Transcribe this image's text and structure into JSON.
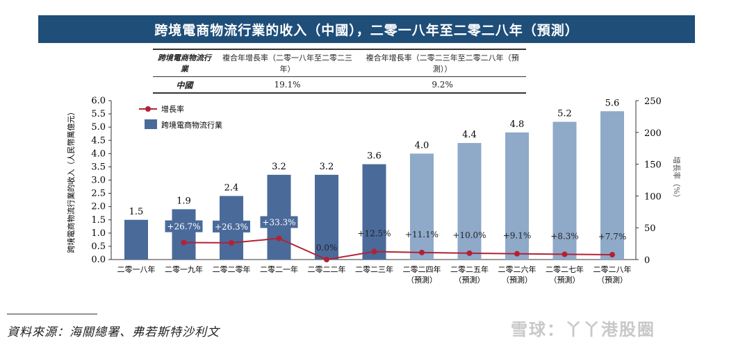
{
  "title": "跨境電商物流行業的收入（中國），二零一八年至二零二八年（預測）",
  "table": {
    "headers": [
      "跨境電商物流行業",
      "複合年增長率（二零一八年至二零二三年）",
      "複合年增長率（二零二三年至二零二八年（預測））"
    ],
    "rows": [
      [
        "中國",
        "19.1%",
        "9.2%"
      ]
    ]
  },
  "chart_data": {
    "type": "bar",
    "categories": [
      [
        "二零一八年",
        ""
      ],
      [
        "二零一九年",
        ""
      ],
      [
        "二零二零年",
        ""
      ],
      [
        "二零二一年",
        ""
      ],
      [
        "二零二二年",
        ""
      ],
      [
        "二零二三年",
        ""
      ],
      [
        "二零二四年",
        "（預測）"
      ],
      [
        "二零二五年",
        "（預測）"
      ],
      [
        "二零二六年",
        "（預測）"
      ],
      [
        "二零二七年",
        "（預測）"
      ],
      [
        "二零二八年",
        "（預測）"
      ]
    ],
    "series": [
      {
        "name": "跨境電商物流行業",
        "type": "bar",
        "axis": "left",
        "values": [
          1.5,
          1.9,
          2.4,
          3.2,
          3.2,
          3.6,
          4.0,
          4.4,
          4.8,
          5.2,
          5.6
        ],
        "value_labels": [
          "1.5",
          "1.9",
          "2.4",
          "3.2",
          "3.2",
          "3.6",
          "4.0",
          "4.4",
          "4.8",
          "5.2",
          "5.6"
        ],
        "color": "#4a6a9a",
        "forecast_color": "#8fa9c9"
      },
      {
        "name": "增長率",
        "type": "line",
        "axis": "right",
        "values": [
          null,
          26.7,
          26.3,
          33.3,
          0.0,
          12.5,
          11.1,
          10.0,
          9.1,
          8.3,
          7.7
        ],
        "value_labels": [
          "",
          "+26.7%",
          "+26.3%",
          "+33.3%",
          "0.0%",
          "+12.5%",
          "+11.1%",
          "+10.0%",
          "+9.1%",
          "+8.3%",
          "+7.7%"
        ],
        "color": "#b22234"
      }
    ],
    "ylabel": "跨境電商物流行業的收入（人民幣萬億元）",
    "y2label": "增長率（%）",
    "ylim": [
      0,
      6.0
    ],
    "yticks": [
      "0.0",
      "0.5",
      "1.0",
      "1.5",
      "2.0",
      "2.5",
      "3.0",
      "3.5",
      "4.0",
      "4.5",
      "5.0",
      "5.5",
      "6.0"
    ],
    "y2lim": [
      0,
      250
    ],
    "y2ticks": [
      "0",
      "50",
      "100",
      "150",
      "200",
      "250"
    ],
    "legend": "top-left",
    "grid": false
  },
  "source": "資料來源：海關總署、弗若斯特沙利文",
  "watermark": "雪球：丫丫港股圈"
}
